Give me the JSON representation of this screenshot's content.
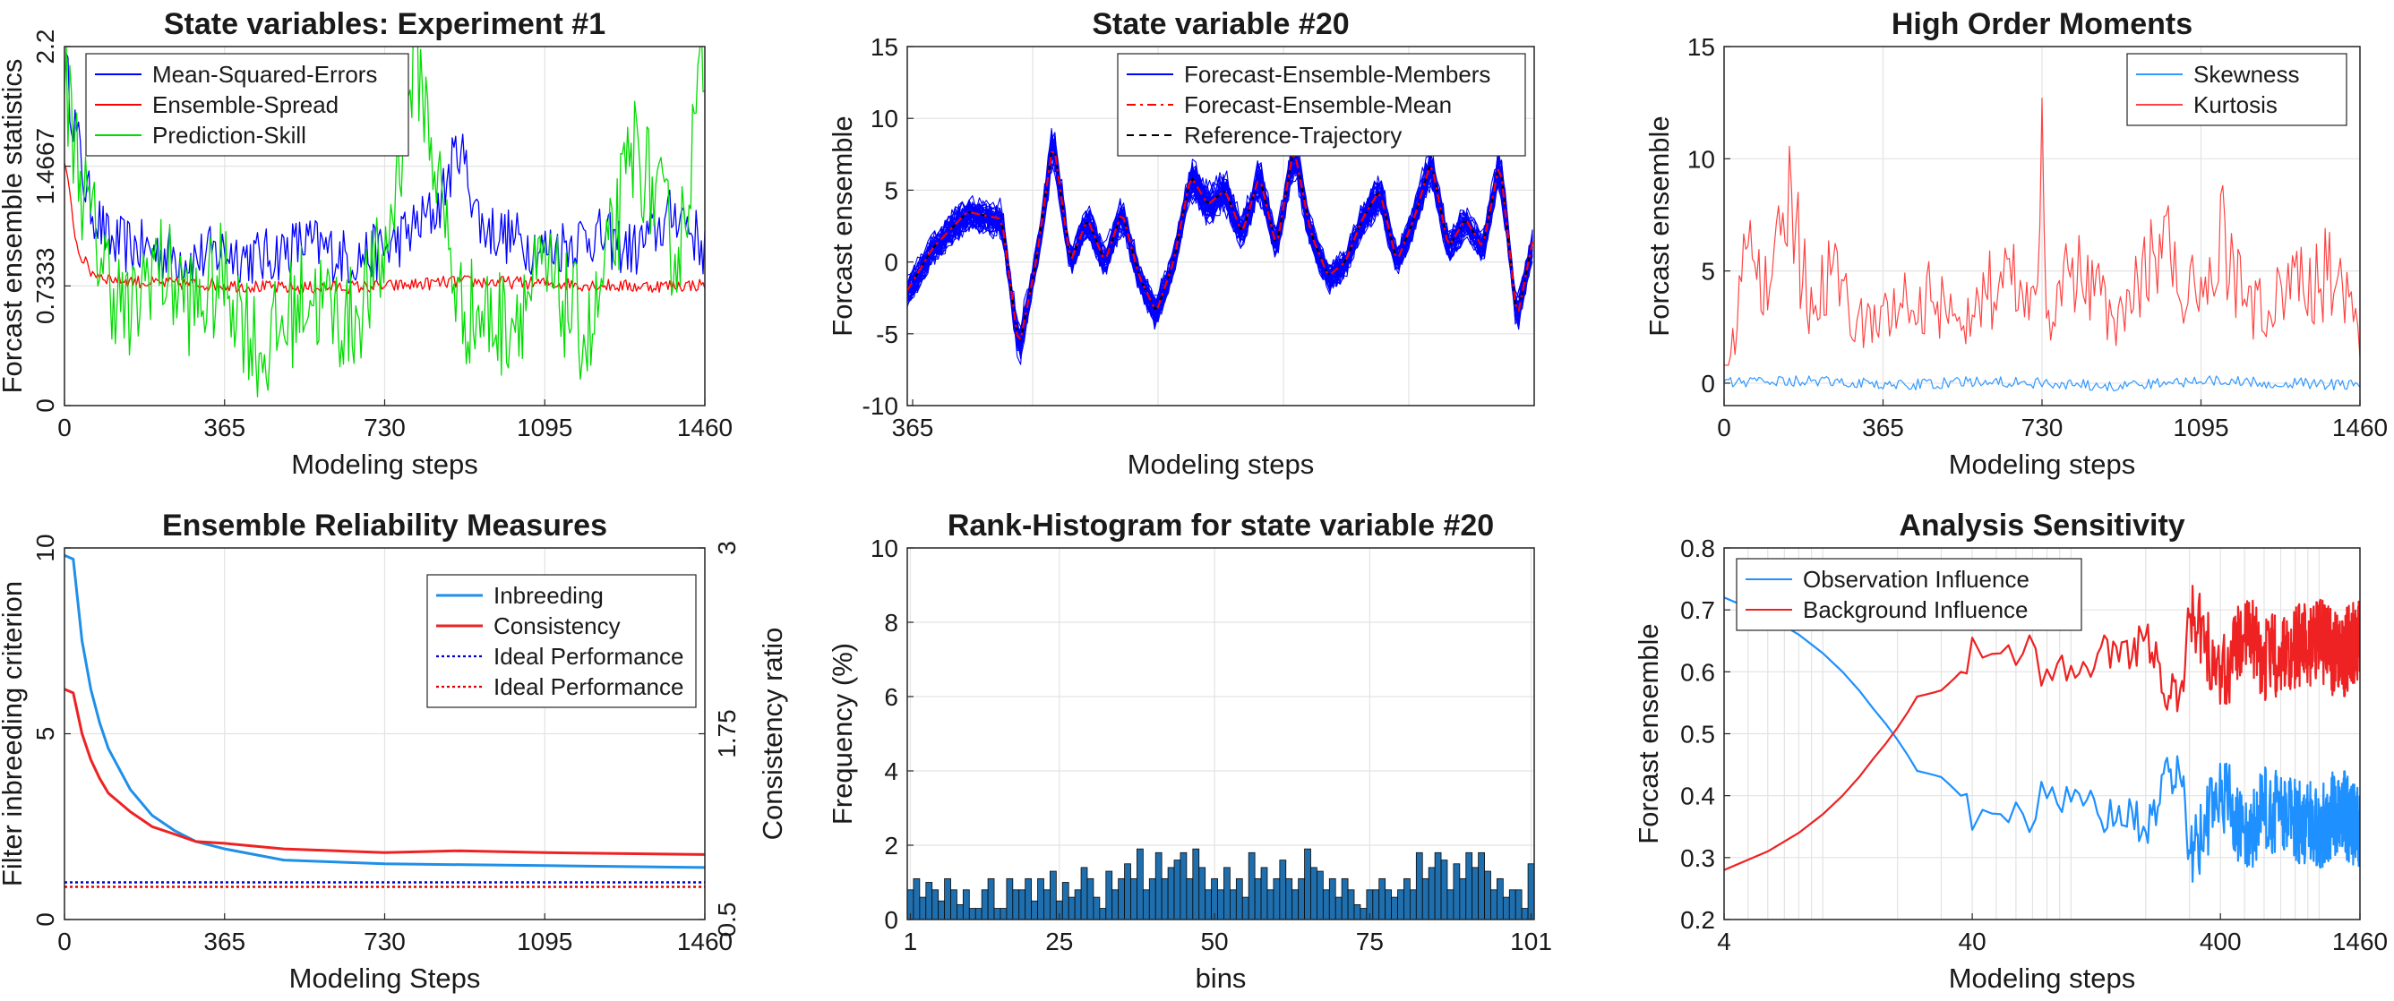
{
  "figure": {
    "panels": [
      {
        "id": "p1",
        "title": "State variables: Experiment #1",
        "xlabel": "Modeling steps",
        "ylabel": "Forcast ensemble statistics"
      },
      {
        "id": "p2",
        "title": "State variable #20",
        "xlabel": "Modeling steps",
        "ylabel": "Forcast ensemble"
      },
      {
        "id": "p3",
        "title": "High Order Moments",
        "xlabel": "Modeling steps",
        "ylabel": "Forcast ensemble"
      },
      {
        "id": "p4",
        "title": "Ensemble Reliability Measures",
        "xlabel": "Modeling Steps",
        "ylabel": "Filter inbreeding criterion",
        "ylabel_right": "Consistency ratio"
      },
      {
        "id": "p5",
        "title": "Rank-Histogram for state variable #20",
        "xlabel": "bins",
        "ylabel": "Frequency (%)"
      },
      {
        "id": "p6",
        "title": "Analysis Sensitivity",
        "xlabel": "Modeling steps",
        "ylabel": "Forcast ensemble"
      }
    ]
  },
  "chart_data": [
    {
      "type": "line",
      "title": "State variables: Experiment #1",
      "xlabel": "Modeling steps",
      "ylabel": "Forcast ensemble statistics",
      "xlim": [
        0,
        1460
      ],
      "ylim": [
        0,
        2.2
      ],
      "xticks": [
        "0",
        "365",
        "730",
        "1095",
        "1460"
      ],
      "yticks": [
        "0",
        "0.7333",
        "1.4667",
        "2.2"
      ],
      "grid": true,
      "legend_position": "top-left",
      "series": [
        {
          "name": "Mean-Squared-Errors",
          "color": "#0000ff",
          "x": [
            0,
            50,
            100,
            200,
            300,
            365,
            450,
            550,
            650,
            730,
            850,
            900,
            950,
            1095,
            1200,
            1300,
            1400,
            1460
          ],
          "y": [
            2.1,
            1.3,
            1.0,
            0.95,
            0.9,
            0.95,
            0.9,
            1.0,
            0.9,
            0.95,
            1.2,
            1.6,
            1.1,
            0.95,
            1.05,
            0.95,
            1.2,
            0.95
          ]
        },
        {
          "name": "Ensemble-Spread",
          "color": "#ff0000",
          "x": [
            0,
            30,
            60,
            100,
            200,
            365,
            500,
            730,
            900,
            1095,
            1300,
            1460
          ],
          "y": [
            1.5,
            0.95,
            0.82,
            0.78,
            0.75,
            0.74,
            0.72,
            0.73,
            0.76,
            0.75,
            0.73,
            0.74
          ]
        },
        {
          "name": "Prediction-Skill",
          "color": "#00dd00",
          "x": [
            0,
            50,
            100,
            150,
            200,
            300,
            365,
            450,
            550,
            650,
            730,
            800,
            900,
            1000,
            1095,
            1200,
            1300,
            1400,
            1460
          ],
          "y": [
            2.0,
            1.2,
            0.8,
            0.5,
            0.9,
            0.6,
            0.8,
            0.3,
            0.7,
            0.5,
            0.9,
            2.2,
            0.6,
            0.5,
            0.8,
            0.4,
            1.6,
            0.9,
            2.2
          ]
        }
      ]
    },
    {
      "type": "line",
      "title": "State variable #20",
      "xlabel": "Modeling steps",
      "ylabel": "Forcast ensemble",
      "xlim": [
        365,
        730
      ],
      "ylim": [
        -10,
        15
      ],
      "xticks": [
        "365"
      ],
      "yticks": [
        "-10",
        "-5",
        "0",
        "5",
        "10",
        "15"
      ],
      "grid": true,
      "legend_position": "top-right",
      "series": [
        {
          "name": "Forecast-Ensemble-Members",
          "color": "#0000ff",
          "x": [
            365,
            380,
            400,
            420,
            430,
            440,
            450,
            460,
            470,
            480,
            490,
            500,
            510,
            520,
            530,
            540,
            550,
            560,
            570,
            580,
            590,
            600,
            610,
            620,
            630,
            640,
            650,
            660,
            670,
            680,
            690,
            700,
            710,
            720,
            730
          ],
          "y": [
            -2,
            1,
            3.5,
            3,
            -6,
            0,
            8.5,
            0,
            3,
            0,
            3.5,
            -1,
            -3.5,
            0,
            6,
            4,
            5,
            2,
            6,
            1,
            8,
            2,
            -1,
            0,
            3,
            5,
            0,
            3,
            7,
            1,
            3,
            1,
            7,
            -4,
            2
          ]
        },
        {
          "name": "Forecast-Ensemble-Mean",
          "color": "#ff0000",
          "x": [
            365,
            380,
            400,
            420,
            430,
            440,
            450,
            460,
            470,
            480,
            490,
            500,
            510,
            520,
            530,
            540,
            550,
            560,
            570,
            580,
            590,
            600,
            610,
            620,
            630,
            640,
            650,
            660,
            670,
            680,
            690,
            700,
            710,
            720,
            730
          ],
          "y": [
            -2,
            1,
            3.5,
            3,
            -6,
            0,
            8.5,
            0,
            3,
            0,
            3.5,
            -1,
            -3.5,
            0,
            6,
            4,
            5,
            2,
            6,
            1,
            8,
            2,
            -1,
            0,
            3,
            5,
            0,
            3,
            7,
            1,
            3,
            1,
            7,
            -4,
            2
          ]
        },
        {
          "name": "Reference-Trajectory",
          "color": "#000000",
          "x": [
            365,
            380,
            400,
            420,
            430,
            440,
            450,
            460,
            470,
            480,
            490,
            500,
            510,
            520,
            530,
            540,
            550,
            560,
            570,
            580,
            590,
            600,
            610,
            620,
            630,
            640,
            650,
            660,
            670,
            680,
            690,
            700,
            710,
            720,
            730
          ],
          "y": [
            -2,
            1,
            3.5,
            3,
            -6,
            0,
            8.5,
            0,
            3,
            0,
            3.5,
            -1,
            -3.5,
            0,
            6,
            4,
            5,
            2,
            6,
            1,
            8,
            2,
            -1,
            0,
            3,
            5,
            0,
            3,
            7,
            1,
            3,
            1,
            7,
            -4,
            2
          ]
        }
      ]
    },
    {
      "type": "line",
      "title": "High Order Moments",
      "xlabel": "Modeling steps",
      "ylabel": "Forcast ensemble",
      "xlim": [
        0,
        1460
      ],
      "ylim": [
        -1,
        15
      ],
      "xticks": [
        "0",
        "365",
        "730",
        "1095",
        "1460"
      ],
      "yticks": [
        "0",
        "5",
        "10",
        "15"
      ],
      "grid": true,
      "legend_position": "top-right",
      "series": [
        {
          "name": "Skewness",
          "color": "#3399ff",
          "x": [
            0,
            200,
            400,
            600,
            730,
            900,
            1100,
            1300,
            1460
          ],
          "y": [
            0,
            0.1,
            -0.1,
            0.1,
            0,
            -0.1,
            0.1,
            0,
            -0.1
          ]
        },
        {
          "name": "Kurtosis",
          "color": "#ff4444",
          "x": [
            0,
            30,
            60,
            100,
            150,
            200,
            250,
            300,
            365,
            450,
            550,
            650,
            700,
            720,
            730,
            740,
            800,
            900,
            1000,
            1095,
            1150,
            1200,
            1300,
            1400,
            1460
          ],
          "y": [
            0.5,
            2.5,
            7.5,
            3.5,
            8,
            3,
            5,
            2.5,
            3,
            4,
            3,
            5,
            3,
            7,
            12.7,
            3,
            5,
            3,
            6,
            3.5,
            6.5,
            3,
            4,
            5,
            2
          ]
        }
      ]
    },
    {
      "type": "line",
      "title": "Ensemble Reliability Measures",
      "xlabel": "Modeling Steps",
      "ylabel": "Filter inbreeding criterion",
      "ylabel_right": "Consistency ratio",
      "xlim": [
        0,
        1460
      ],
      "ylim": [
        0,
        10
      ],
      "ylim_right": [
        0.5,
        3
      ],
      "xticks": [
        "0",
        "365",
        "730",
        "1095",
        "1460"
      ],
      "yticks": [
        "0",
        "5",
        "10"
      ],
      "yticks_right": [
        "0.5",
        "1.75",
        "3"
      ],
      "grid": true,
      "legend_position": "top-right",
      "series": [
        {
          "name": "Inbreeding",
          "color": "#1f8fe8",
          "axis": "left",
          "x": [
            0,
            20,
            40,
            60,
            80,
            100,
            150,
            200,
            250,
            300,
            365,
            500,
            730,
            1095,
            1460
          ],
          "y": [
            9.8,
            9.7,
            7.5,
            6.2,
            5.3,
            4.6,
            3.5,
            2.8,
            2.4,
            2.1,
            1.9,
            1.6,
            1.5,
            1.45,
            1.4
          ]
        },
        {
          "name": "Consistency",
          "color": "#ee2222",
          "axis": "left",
          "x": [
            0,
            20,
            40,
            60,
            80,
            100,
            150,
            200,
            250,
            300,
            365,
            500,
            730,
            900,
            1095,
            1460
          ],
          "y": [
            6.2,
            6.1,
            5.0,
            4.3,
            3.8,
            3.4,
            2.9,
            2.5,
            2.3,
            2.1,
            2.05,
            1.9,
            1.8,
            1.85,
            1.8,
            1.75
          ]
        },
        {
          "name": "Ideal Performance",
          "color": "#0000cc",
          "axis": "left",
          "x": [
            0,
            1460
          ],
          "y": [
            1.0,
            1.0
          ]
        },
        {
          "name": "Ideal Performance",
          "color": "#dd0000",
          "axis": "right",
          "x": [
            0,
            1460
          ],
          "y": [
            0.72,
            0.72
          ]
        }
      ]
    },
    {
      "type": "bar",
      "title": "Rank-Histogram for state variable #20",
      "xlabel": "bins",
      "ylabel": "Frequency (%)",
      "xlim": [
        1,
        101
      ],
      "ylim": [
        0,
        10
      ],
      "xticks": [
        "1",
        "25",
        "50",
        "75",
        "101"
      ],
      "yticks": [
        "0",
        "2",
        "4",
        "6",
        "8",
        "10"
      ],
      "grid": true,
      "color": "#1f6fae",
      "categories": [
        1,
        2,
        3,
        4,
        5,
        6,
        7,
        8,
        9,
        10,
        11,
        12,
        13,
        14,
        15,
        16,
        17,
        18,
        19,
        20,
        21,
        22,
        23,
        24,
        25,
        26,
        27,
        28,
        29,
        30,
        31,
        32,
        33,
        34,
        35,
        36,
        37,
        38,
        39,
        40,
        41,
        42,
        43,
        44,
        45,
        46,
        47,
        48,
        49,
        50,
        51,
        52,
        53,
        54,
        55,
        56,
        57,
        58,
        59,
        60,
        61,
        62,
        63,
        64,
        65,
        66,
        67,
        68,
        69,
        70,
        71,
        72,
        73,
        74,
        75,
        76,
        77,
        78,
        79,
        80,
        81,
        82,
        83,
        84,
        85,
        86,
        87,
        88,
        89,
        90,
        91,
        92,
        93,
        94,
        95,
        96,
        97,
        98,
        99,
        100,
        101
      ],
      "values": [
        0.8,
        1.1,
        0.6,
        1.0,
        0.8,
        0.5,
        1.1,
        0.8,
        0.4,
        0.8,
        0.3,
        0.3,
        0.8,
        1.1,
        0.3,
        0.3,
        1.1,
        0.8,
        0.8,
        1.1,
        0.5,
        1.1,
        0.8,
        1.3,
        0.5,
        1.0,
        0.6,
        0.8,
        1.4,
        1.1,
        0.6,
        0.3,
        1.3,
        0.8,
        1.1,
        1.5,
        1.1,
        1.9,
        0.8,
        1.1,
        1.8,
        1.1,
        1.4,
        1.6,
        1.8,
        1.1,
        1.9,
        1.4,
        0.8,
        1.1,
        0.8,
        1.4,
        0.8,
        1.1,
        0.6,
        1.8,
        1.1,
        1.4,
        0.8,
        1.1,
        1.6,
        1.1,
        0.8,
        1.1,
        1.9,
        1.4,
        1.3,
        0.8,
        1.1,
        0.6,
        1.1,
        0.8,
        0.4,
        0.3,
        0.8,
        0.8,
        1.1,
        0.8,
        0.6,
        0.8,
        1.1,
        0.8,
        1.8,
        1.1,
        1.4,
        1.8,
        1.6,
        0.8,
        1.5,
        1.1,
        1.8,
        1.4,
        1.8,
        1.3,
        0.8,
        1.1,
        0.6,
        0.8,
        0.8,
        0.3,
        1.5
      ]
    },
    {
      "type": "line",
      "title": "Analysis Sensitivity",
      "xlabel": "Modeling steps",
      "ylabel": "Forcast ensemble",
      "xscale": "log",
      "xlim": [
        4,
        1460
      ],
      "ylim": [
        0.2,
        0.8
      ],
      "xticks": [
        "4",
        "40",
        "400",
        "1460"
      ],
      "yticks": [
        "0.2",
        "0.3",
        "0.4",
        "0.5",
        "0.6",
        "0.7",
        "0.8"
      ],
      "grid": true,
      "legend_position": "top-left",
      "series": [
        {
          "name": "Observation Influence",
          "color": "#1e90ff",
          "x": [
            4,
            8,
            16,
            24,
            30,
            36,
            40,
            50,
            60,
            80,
            100,
            150,
            200,
            250,
            280,
            300,
            350,
            400,
            500,
            600,
            800,
            1000,
            1200,
            1460
          ],
          "y": [
            0.72,
            0.66,
            0.54,
            0.44,
            0.43,
            0.4,
            0.34,
            0.41,
            0.36,
            0.4,
            0.38,
            0.37,
            0.35,
            0.44,
            0.43,
            0.3,
            0.35,
            0.42,
            0.32,
            0.38,
            0.36,
            0.35,
            0.38,
            0.34
          ]
        },
        {
          "name": "Background Influence",
          "color": "#ee2222",
          "x": [
            4,
            8,
            16,
            24,
            30,
            36,
            40,
            50,
            60,
            80,
            100,
            150,
            200,
            250,
            280,
            300,
            350,
            400,
            500,
            600,
            800,
            1000,
            1200,
            1460
          ],
          "y": [
            0.28,
            0.34,
            0.46,
            0.56,
            0.57,
            0.6,
            0.66,
            0.59,
            0.64,
            0.6,
            0.62,
            0.63,
            0.65,
            0.56,
            0.57,
            0.7,
            0.65,
            0.58,
            0.68,
            0.62,
            0.64,
            0.65,
            0.62,
            0.66
          ]
        }
      ]
    }
  ]
}
